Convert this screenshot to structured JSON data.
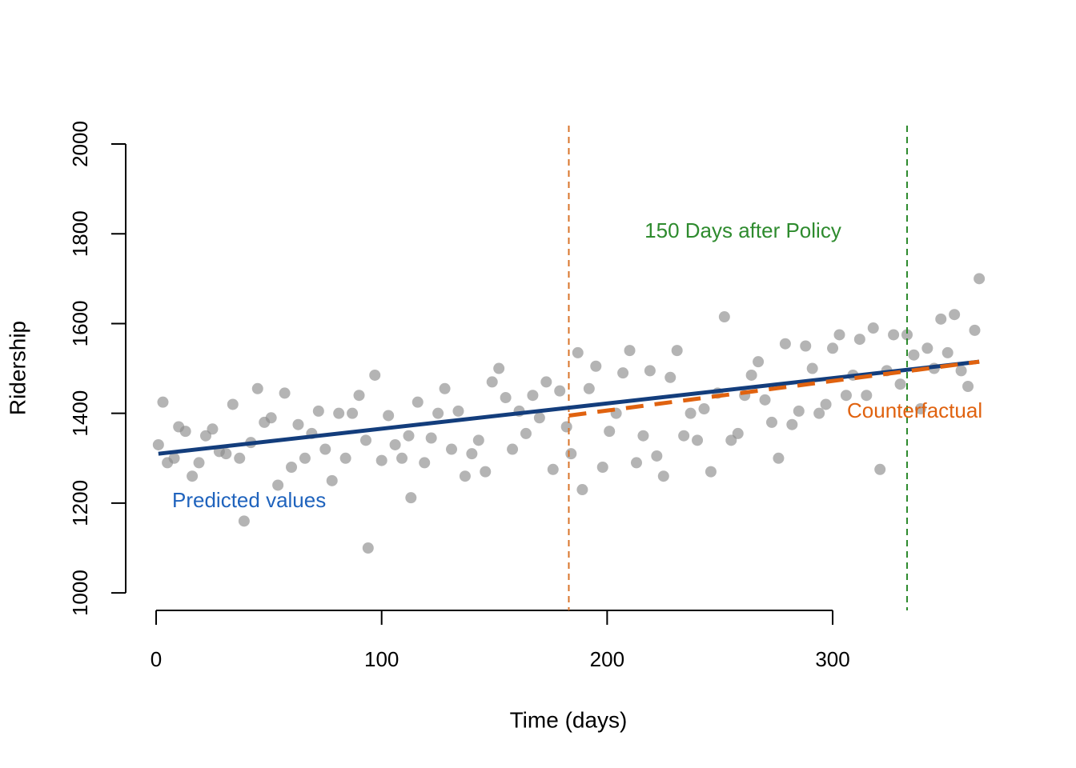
{
  "chart_data": {
    "type": "scatter",
    "xlabel": "Time (days)",
    "ylabel": "Ridership",
    "xlim": [
      -13.5,
      378.8
    ],
    "ylim": [
      961,
      2041
    ],
    "xticks": [
      0,
      100,
      200,
      300
    ],
    "yticks": [
      1000,
      1200,
      1400,
      1600,
      1800,
      2000
    ],
    "color": "#8c8c8c",
    "x": [
      1,
      3,
      5,
      8,
      10,
      13,
      16,
      19,
      22,
      25,
      28,
      31,
      34,
      37,
      39,
      42,
      45,
      48,
      51,
      54,
      57,
      60,
      63,
      66,
      69,
      72,
      75,
      78,
      81,
      84,
      87,
      90,
      93,
      94,
      97,
      100,
      103,
      106,
      109,
      112,
      113,
      116,
      119,
      122,
      125,
      128,
      131,
      134,
      137,
      140,
      143,
      146,
      149,
      152,
      155,
      158,
      161,
      164,
      167,
      170,
      173,
      176,
      179,
      182,
      184,
      187,
      189,
      192,
      195,
      198,
      201,
      204,
      207,
      210,
      213,
      216,
      219,
      222,
      225,
      228,
      231,
      234,
      237,
      240,
      243,
      246,
      249,
      252,
      255,
      258,
      261,
      264,
      267,
      270,
      273,
      276,
      279,
      282,
      285,
      288,
      291,
      294,
      297,
      300,
      303,
      306,
      309,
      312,
      315,
      318,
      321,
      324,
      327,
      330,
      333,
      336,
      339,
      342,
      345,
      348,
      351,
      354,
      357,
      360,
      363,
      365
    ],
    "values": [
      1330,
      1425,
      1290,
      1300,
      1370,
      1360,
      1260,
      1290,
      1350,
      1365,
      1315,
      1310,
      1420,
      1300,
      1160,
      1335,
      1455,
      1380,
      1390,
      1240,
      1445,
      1280,
      1375,
      1300,
      1355,
      1405,
      1320,
      1250,
      1400,
      1300,
      1400,
      1440,
      1340,
      1100,
      1485,
      1295,
      1395,
      1330,
      1300,
      1350,
      1212,
      1425,
      1290,
      1345,
      1400,
      1455,
      1320,
      1405,
      1260,
      1310,
      1340,
      1270,
      1470,
      1500,
      1435,
      1320,
      1405,
      1355,
      1440,
      1390,
      1470,
      1275,
      1450,
      1370,
      1310,
      1535,
      1230,
      1455,
      1505,
      1280,
      1360,
      1400,
      1490,
      1540,
      1290,
      1350,
      1495,
      1305,
      1260,
      1480,
      1540,
      1350,
      1400,
      1340,
      1410,
      1270,
      1445,
      1615,
      1340,
      1355,
      1440,
      1485,
      1515,
      1430,
      1380,
      1300,
      1555,
      1375,
      1405,
      1550,
      1500,
      1400,
      1420,
      1545,
      1575,
      1440,
      1485,
      1565,
      1440,
      1590,
      1275,
      1495,
      1575,
      1465,
      1575,
      1530,
      1410,
      1545,
      1500,
      1610,
      1535,
      1620,
      1495,
      1460,
      1585,
      1700
    ],
    "series": [
      {
        "name": "Predicted values",
        "color": "#133d7c",
        "label_color": "#1f63bd",
        "x": [
          1,
          365
        ],
        "values": [
          1310,
          1515
        ]
      },
      {
        "name": "Counterfactual",
        "color": "#e0620f",
        "label_color": "#e0620f",
        "dashed": true,
        "x": [
          183,
          365
        ],
        "values": [
          1395,
          1515
        ]
      }
    ],
    "vlines": [
      {
        "x": 183,
        "color": "#d9742a"
      },
      {
        "x": 333,
        "color": "#2e8b2e",
        "label": "150 Days after Policy"
      }
    ]
  }
}
